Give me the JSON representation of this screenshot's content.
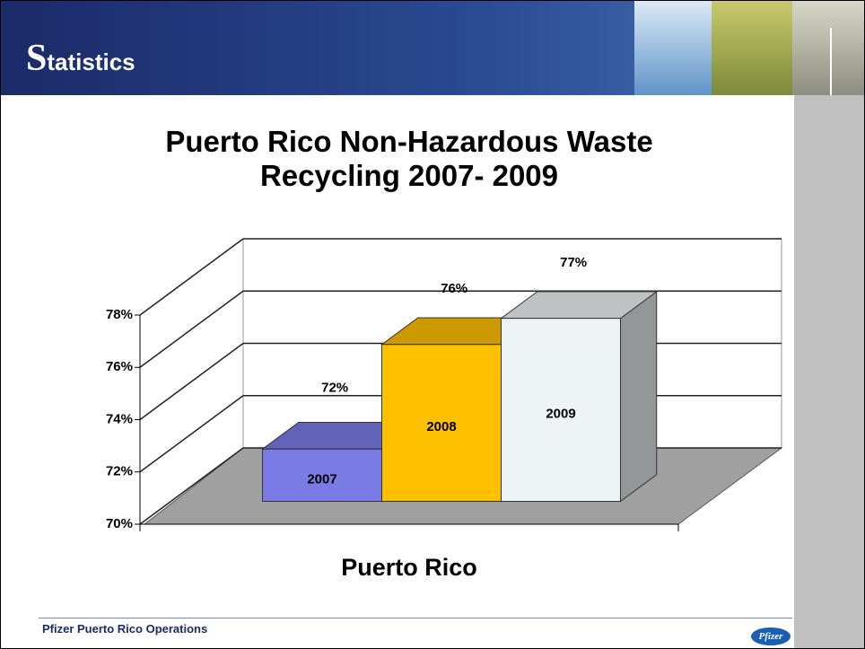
{
  "header": {
    "title": "Statistics"
  },
  "footer": {
    "text": "Pfizer Puerto Rico Operations",
    "logo": "Pfizer"
  },
  "chart_data": {
    "type": "bar3d",
    "title": "Puerto Rico Non-Hazardous Waste Recycling 2007- 2009",
    "categories": [
      "Puerto Rico"
    ],
    "series": [
      {
        "name": "2007",
        "color": "#7b7be6",
        "values": [
          72
        ],
        "value_labels": [
          "72%"
        ]
      },
      {
        "name": "2008",
        "color": "#ffc000",
        "values": [
          76
        ],
        "value_labels": [
          "76%"
        ]
      },
      {
        "name": "2009",
        "color": "#eef3f3",
        "values": [
          77
        ],
        "value_labels": [
          "77%"
        ]
      }
    ],
    "ylim": [
      70,
      78
    ],
    "yticks": [
      {
        "value": 70,
        "label": "70%"
      },
      {
        "value": 72,
        "label": "72%"
      },
      {
        "value": 74,
        "label": "74%"
      },
      {
        "value": 76,
        "label": "76%"
      },
      {
        "value": 78,
        "label": "78%"
      }
    ],
    "grid": true
  }
}
